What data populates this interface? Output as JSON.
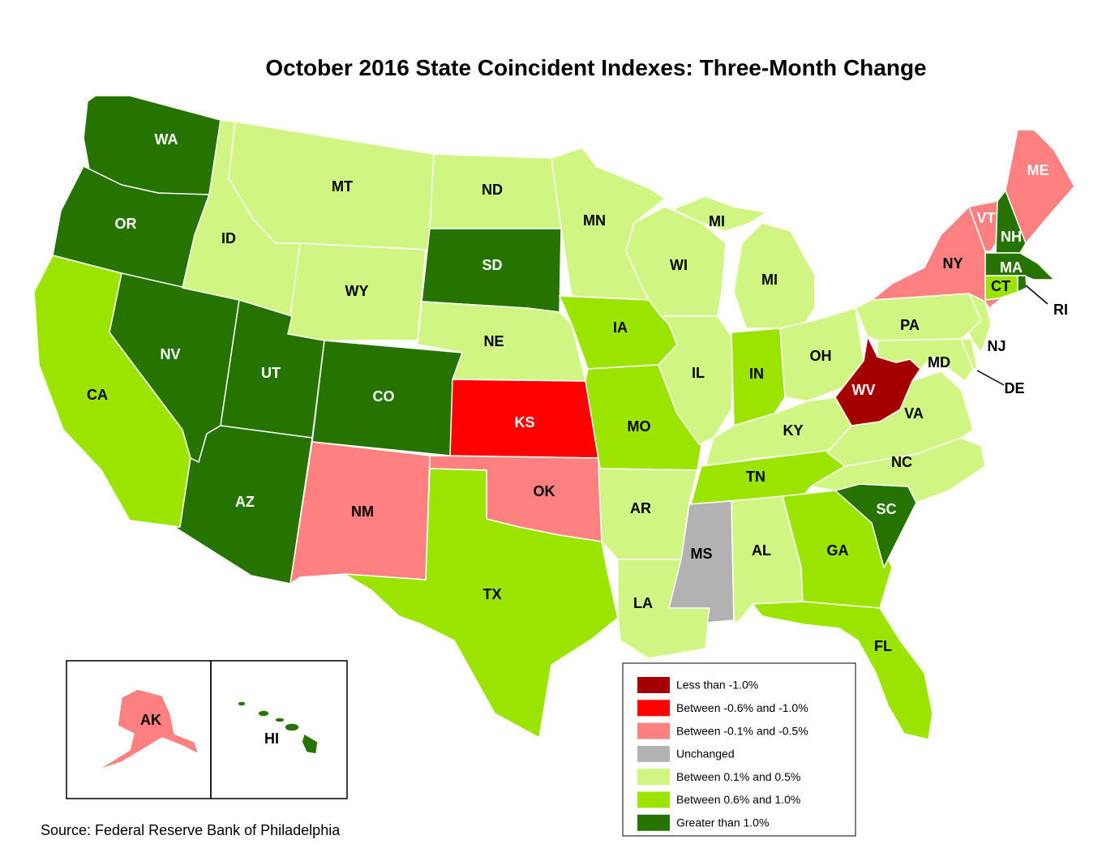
{
  "title": "October 2016 State Coincident Indexes: Three-Month Change",
  "source": "Source: Federal Reserve Bank of Philadelphia",
  "colors": {
    "lt_minus1": "#a50000",
    "m06_m10": "#ff0000",
    "m01_m05": "#ff8080",
    "unchanged": "#b2b2b2",
    "p01_p05": "#d1f582",
    "p06_p10": "#9be400",
    "gt_1": "#267300"
  },
  "legend": [
    {
      "key": "lt_minus1",
      "label": "Less than -1.0%"
    },
    {
      "key": "m06_m10",
      "label": "Between -0.6% and -1.0%"
    },
    {
      "key": "m01_m05",
      "label": "Between -0.1% and -0.5%"
    },
    {
      "key": "unchanged",
      "label": "Unchanged"
    },
    {
      "key": "p01_p05",
      "label": "Between 0.1% and 0.5%"
    },
    {
      "key": "p06_p10",
      "label": "Between 0.6% and 1.0%"
    },
    {
      "key": "gt_1",
      "label": "Greater than 1.0%"
    }
  ],
  "states": {
    "WA": "gt_1",
    "OR": "gt_1",
    "CA": "p06_p10",
    "NV": "gt_1",
    "ID": "p01_p05",
    "MT": "p01_p05",
    "WY": "p01_p05",
    "UT": "gt_1",
    "AZ": "gt_1",
    "CO": "gt_1",
    "NM": "m01_m05",
    "ND": "p01_p05",
    "SD": "gt_1",
    "NE": "p01_p05",
    "KS": "m06_m10",
    "OK": "m01_m05",
    "TX": "p06_p10",
    "MN": "p01_p05",
    "IA": "p06_p10",
    "MO": "p06_p10",
    "AR": "p01_p05",
    "LA": "p01_p05",
    "WI": "p01_p05",
    "IL": "p01_p05",
    "MI": "p01_p05",
    "IN": "p06_p10",
    "OH": "p01_p05",
    "KY": "p01_p05",
    "TN": "p06_p10",
    "MS": "unchanged",
    "AL": "p01_p05",
    "GA": "p06_p10",
    "FL": "p06_p10",
    "SC": "gt_1",
    "NC": "p01_p05",
    "VA": "p01_p05",
    "WV": "lt_minus1",
    "MD": "p01_p05",
    "DE": "p01_p05",
    "NJ": "p01_p05",
    "PA": "p01_p05",
    "NY": "m01_m05",
    "VT": "m01_m05",
    "NH": "gt_1",
    "ME": "m01_m05",
    "MA": "gt_1",
    "CT": "p06_p10",
    "RI": "gt_1",
    "AK": "m01_m05",
    "HI": "gt_1"
  },
  "labels": {
    "WA": "WA",
    "OR": "OR",
    "CA": "CA",
    "NV": "NV",
    "ID": "ID",
    "MT": "MT",
    "WY": "WY",
    "UT": "UT",
    "AZ": "AZ",
    "CO": "CO",
    "NM": "NM",
    "ND": "ND",
    "SD": "SD",
    "NE": "NE",
    "KS": "KS",
    "OK": "OK",
    "TX": "TX",
    "MN": "MN",
    "IA": "IA",
    "MO": "MO",
    "AR": "AR",
    "LA": "LA",
    "WI": "WI",
    "IL": "IL",
    "MI": "MI",
    "MI2": "MI",
    "IN": "IN",
    "OH": "OH",
    "KY": "KY",
    "TN": "TN",
    "MS": "MS",
    "AL": "AL",
    "GA": "GA",
    "FL": "FL",
    "SC": "SC",
    "NC": "NC",
    "VA": "VA",
    "WV": "WV",
    "MD": "MD",
    "DE": "DE",
    "NJ": "NJ",
    "PA": "PA",
    "NY": "NY",
    "VT": "VT",
    "NH": "NH",
    "ME": "ME",
    "MA": "MA",
    "CT": "CT",
    "RI": "RI",
    "AK": "AK",
    "HI": "HI"
  }
}
